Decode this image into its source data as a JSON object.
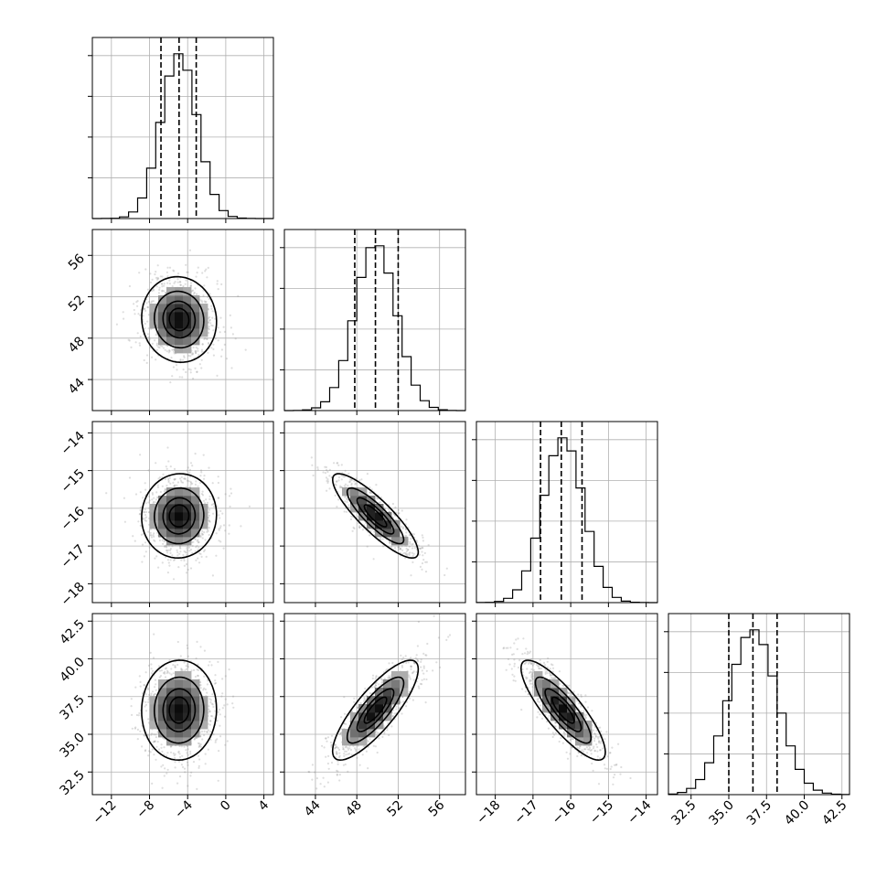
{
  "chart_data": {
    "type": "corner",
    "grid": true,
    "parameters": [
      {
        "index": 0,
        "range": [
          -14,
          5
        ],
        "ticks": [
          -12,
          -8,
          -4,
          0,
          4
        ],
        "tick_labels": [
          "−12",
          "−8",
          "−4",
          "0",
          "4"
        ],
        "mean": -4.9,
        "std": 1.9,
        "quantiles": [
          -6.8,
          -4.9,
          -3.1
        ]
      },
      {
        "index": 1,
        "range": [
          41,
          58.5
        ],
        "ticks": [
          44,
          48,
          52,
          56
        ],
        "tick_labels": [
          "44",
          "48",
          "52",
          "56"
        ],
        "mean": 49.8,
        "std": 2.0,
        "quantiles": [
          47.8,
          49.8,
          52.0
        ]
      },
      {
        "index": 2,
        "range": [
          -18.5,
          -13.7
        ],
        "ticks": [
          -18,
          -17,
          -16,
          -15,
          -14
        ],
        "tick_labels": [
          "−18",
          "−17",
          "−16",
          "−15",
          "−14"
        ],
        "mean": -16.2,
        "std": 0.54,
        "quantiles": [
          -16.8,
          -16.25,
          -15.7
        ]
      },
      {
        "index": 3,
        "range": [
          31,
          43
        ],
        "ticks": [
          32.5,
          35.0,
          37.5,
          40.0,
          42.5
        ],
        "tick_labels": [
          "32.5",
          "35.0",
          "37.5",
          "40.0",
          "42.5"
        ],
        "mean": 36.6,
        "std": 1.6,
        "quantiles": [
          35.0,
          36.6,
          38.2
        ]
      }
    ],
    "correlations": [
      {
        "pair": [
          0,
          1
        ],
        "r": -0.05
      },
      {
        "pair": [
          0,
          2
        ],
        "r": 0.03
      },
      {
        "pair": [
          0,
          3
        ],
        "r": 0.02
      },
      {
        "pair": [
          1,
          2
        ],
        "r": -0.86
      },
      {
        "pair": [
          1,
          3
        ],
        "r": 0.82
      },
      {
        "pair": [
          2,
          3
        ],
        "r": -0.84
      }
    ],
    "contour_levels_sigma": [
      0.5,
      1.0,
      1.5,
      2.0
    ],
    "histogram_bins": 20
  }
}
